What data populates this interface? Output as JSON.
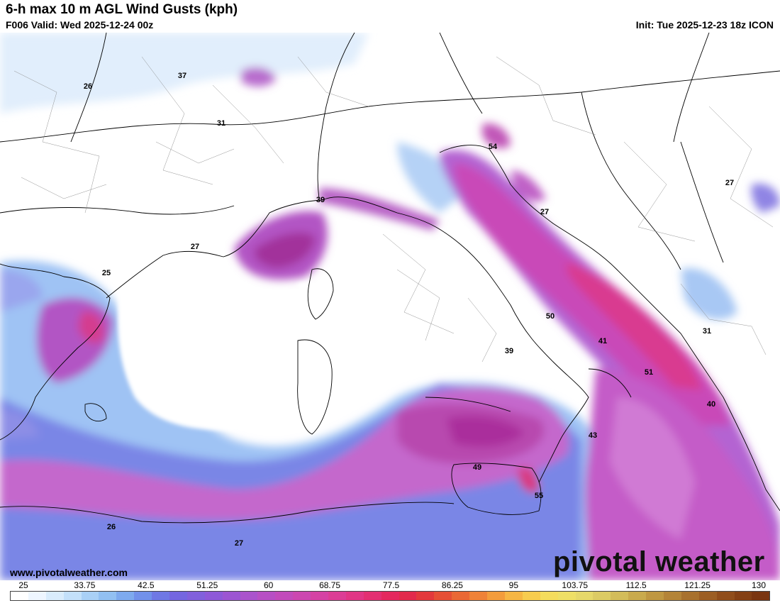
{
  "header": {
    "title": "6-h max 10 m AGL Wind Gusts (kph)",
    "valid": "F006 Valid: Wed 2025-12-24 00z",
    "init": "Init: Tue 2025-12-23 18z ICON"
  },
  "footer": {
    "website": "www.pivotalweather.com",
    "brand": "pivotal weather"
  },
  "map_labels": [
    "26",
    "37",
    "31",
    "39",
    "54",
    "27",
    "27",
    "25",
    "50",
    "41",
    "31",
    "39",
    "51",
    "40",
    "43",
    "49",
    "55",
    "26",
    "27"
  ],
  "colorbar": {
    "ticks": [
      "25",
      "33.75",
      "42.5",
      "51.25",
      "60",
      "68.75",
      "77.5",
      "86.25",
      "95",
      "103.75",
      "112.5",
      "121.25",
      "130"
    ],
    "colors": [
      "#ffffff",
      "#eef6ff",
      "#d9ecfc",
      "#c3e0fa",
      "#a9d0f6",
      "#92c0f2",
      "#7eaaee",
      "#7291ea",
      "#6f78e4",
      "#7466e0",
      "#8160dc",
      "#8e59d8",
      "#9c55d2",
      "#aa53cc",
      "#b74fc4",
      "#c24bbb",
      "#cc47b0",
      "#d542a4",
      "#dc3d95",
      "#e13685",
      "#e32f72",
      "#e4285e",
      "#e22a4c",
      "#e3393c",
      "#e64f35",
      "#ea6835",
      "#ef8238",
      "#f39c3c",
      "#f6b644",
      "#f7cc4f",
      "#f4dc5d",
      "#eedf66",
      "#e6d86a",
      "#dccb64",
      "#d3bc5a",
      "#c9aa4d",
      "#bf9742",
      "#b48438",
      "#a8712e",
      "#9c5e24",
      "#904d1b",
      "#844014",
      "#7a3510"
    ]
  }
}
